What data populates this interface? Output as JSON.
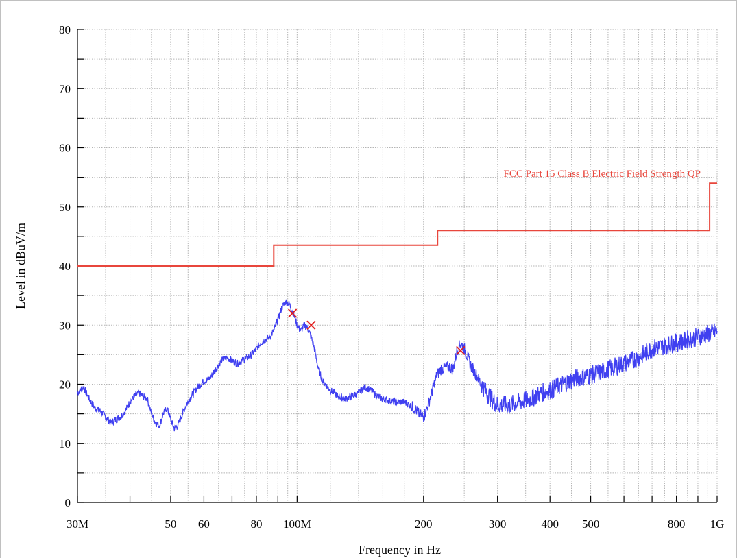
{
  "chart_data": {
    "type": "line",
    "xlabel": "Frequency in Hz",
    "ylabel": "Level in dBuV/m",
    "x_scale": "log",
    "xlim": [
      30000000,
      1000000000
    ],
    "ylim": [
      0,
      80
    ],
    "grid": true,
    "colors": {
      "limit": "#e8463c",
      "trace": "#4040f0",
      "marker": "#e02020",
      "grid": "#b4b4b4"
    },
    "y_ticks": [
      {
        "value": 0,
        "label": "0"
      },
      {
        "value": 10,
        "label": "10"
      },
      {
        "value": 20,
        "label": "20"
      },
      {
        "value": 30,
        "label": "30"
      },
      {
        "value": 40,
        "label": "40"
      },
      {
        "value": 50,
        "label": "50"
      },
      {
        "value": 60,
        "label": "60"
      },
      {
        "value": 70,
        "label": "70"
      },
      {
        "value": 80,
        "label": "80"
      }
    ],
    "x_ticks": [
      {
        "value": 30000000,
        "label": "30M"
      },
      {
        "value": 40000000,
        "label": ""
      },
      {
        "value": 50000000,
        "label": "50"
      },
      {
        "value": 60000000,
        "label": "60"
      },
      {
        "value": 70000000,
        "label": ""
      },
      {
        "value": 80000000,
        "label": "80"
      },
      {
        "value": 90000000,
        "label": ""
      },
      {
        "value": 100000000,
        "label": "100M"
      },
      {
        "value": 200000000,
        "label": "200"
      },
      {
        "value": 300000000,
        "label": "300"
      },
      {
        "value": 400000000,
        "label": "400"
      },
      {
        "value": 500000000,
        "label": "500"
      },
      {
        "value": 600000000,
        "label": ""
      },
      {
        "value": 700000000,
        "label": ""
      },
      {
        "value": 800000000,
        "label": "800"
      },
      {
        "value": 900000000,
        "label": ""
      },
      {
        "value": 1000000000,
        "label": "1G"
      }
    ],
    "series": [
      {
        "name": "FCC Part 15 Class B Electric Field Strength QP",
        "role": "limit",
        "x": [
          30000000,
          88000000,
          88000000,
          216000000,
          216000000,
          960000000,
          960000000,
          1000000000
        ],
        "values": [
          40,
          40,
          43.5,
          43.5,
          46,
          46,
          54,
          54
        ]
      },
      {
        "role": "measurement",
        "x": [
          30000000,
          31000000,
          32000000,
          33000000,
          34000000,
          35000000,
          36000000,
          37000000,
          38000000,
          39000000,
          40000000,
          41000000,
          42000000,
          44000000,
          45000000,
          46000000,
          47000000,
          48000000,
          49000000,
          50000000,
          51000000,
          52000000,
          54000000,
          56000000,
          58000000,
          60000000,
          62000000,
          64000000,
          66000000,
          68000000,
          70000000,
          72000000,
          74000000,
          76000000,
          78000000,
          80000000,
          82000000,
          84000000,
          86000000,
          88000000,
          90000000,
          92000000,
          94000000,
          96000000,
          98000000,
          100000000,
          102000000,
          104000000,
          106000000,
          108000000,
          110000000,
          112000000,
          115000000,
          120000000,
          125000000,
          130000000,
          135000000,
          140000000,
          145000000,
          150000000,
          155000000,
          160000000,
          170000000,
          180000000,
          190000000,
          195000000,
          200000000,
          205000000,
          210000000,
          215000000,
          220000000,
          230000000,
          235000000,
          240000000,
          245000000,
          250000000,
          255000000,
          260000000,
          270000000,
          280000000,
          290000000,
          300000000,
          320000000,
          340000000,
          360000000,
          380000000,
          400000000,
          430000000,
          460000000,
          500000000,
          550000000,
          600000000,
          650000000,
          700000000,
          750000000,
          800000000,
          850000000,
          900000000,
          950000000,
          1000000000
        ],
        "values": [
          18.5,
          19.5,
          17.5,
          16,
          15.5,
          14.5,
          13.5,
          14,
          14.5,
          15.5,
          17,
          18,
          18.5,
          17.5,
          15,
          13.5,
          13,
          15,
          16,
          14,
          12.5,
          13,
          16,
          18,
          19.5,
          20.5,
          21,
          22.5,
          24,
          24.5,
          24,
          23.5,
          24,
          24.5,
          25,
          26,
          27,
          27.5,
          28,
          29,
          31,
          33,
          34,
          33.5,
          32,
          30,
          29,
          30,
          29.5,
          28,
          26,
          23,
          20.5,
          19,
          18,
          17.5,
          18,
          18.5,
          19.5,
          19,
          18,
          17.5,
          17,
          17,
          16,
          15,
          14.5,
          16.5,
          19,
          21.5,
          22.5,
          23,
          22.5,
          25.5,
          27,
          26,
          24.5,
          23,
          21,
          19,
          17.5,
          16.5,
          16.5,
          17,
          17.5,
          18.5,
          19,
          20,
          21,
          21.5,
          22.5,
          23.5,
          24.5,
          26,
          26.5,
          27,
          27.5,
          28,
          28.5,
          29
        ]
      }
    ],
    "markers": [
      {
        "x": 97500000,
        "y": 32
      },
      {
        "x": 108000000,
        "y": 30
      },
      {
        "x": 245000000,
        "y": 25.7
      }
    ]
  }
}
